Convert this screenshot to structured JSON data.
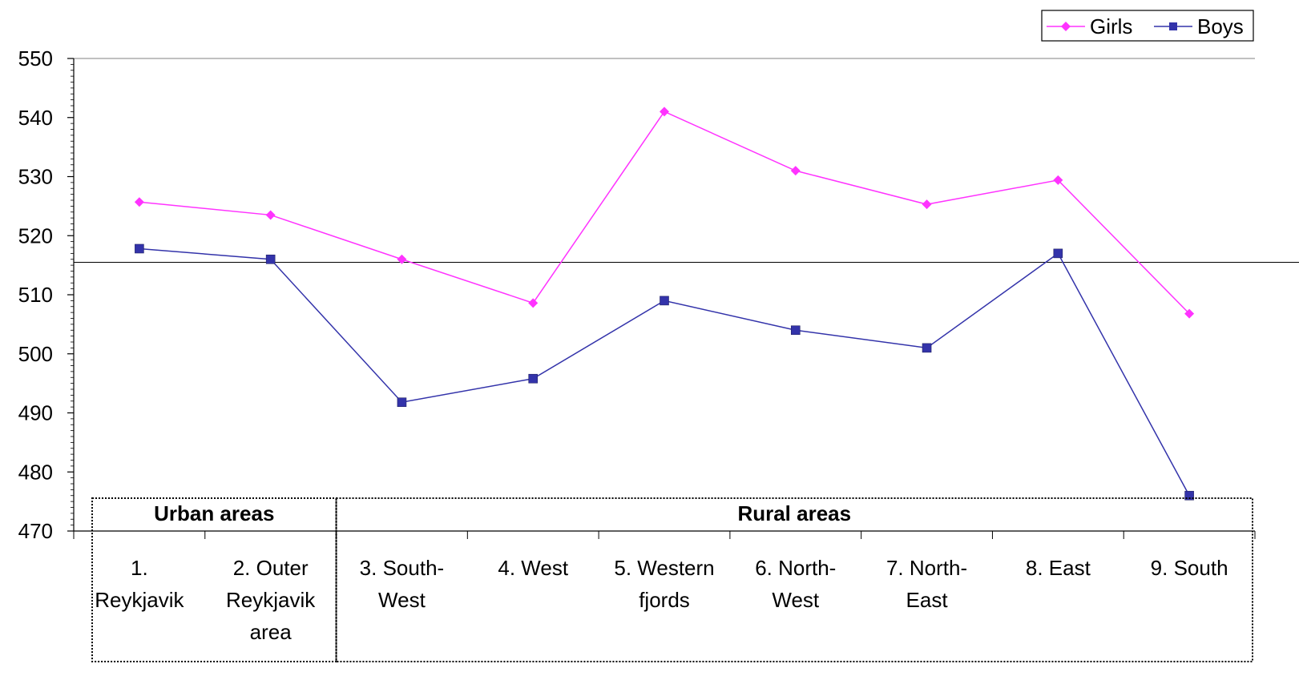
{
  "chart_data": {
    "type": "line",
    "title": "",
    "xlabel": "",
    "ylabel": "",
    "categories": [
      [
        "1.",
        "Reykjavik"
      ],
      [
        "2. Outer",
        "Reykjavik",
        "area"
      ],
      [
        "3. South-",
        "West"
      ],
      [
        "4. West"
      ],
      [
        "5. Western",
        "fjords"
      ],
      [
        "6. North-",
        "West"
      ],
      [
        "7. North-",
        "East"
      ],
      [
        "8. East"
      ],
      [
        "9. South"
      ]
    ],
    "ylim": [
      470,
      550
    ],
    "yticks": [
      470,
      480,
      490,
      500,
      510,
      520,
      530,
      540,
      550
    ],
    "grid": false,
    "legend_position": "top-right",
    "reference_line": 515.5,
    "groups": [
      {
        "label": "Urban areas",
        "from": 0,
        "to": 1
      },
      {
        "label": "Rural areas",
        "from": 2,
        "to": 8
      }
    ],
    "series": [
      {
        "name": "Girls",
        "color": "#ff33ff",
        "marker": "diamond",
        "values": [
          525.7,
          523.5,
          516,
          508.6,
          541,
          531,
          525.3,
          529.4,
          506.8
        ]
      },
      {
        "name": "Boys",
        "color": "#3333aa",
        "marker": "square",
        "values": [
          517.8,
          516,
          491.8,
          495.8,
          509,
          504,
          501,
          517,
          476
        ]
      }
    ]
  }
}
